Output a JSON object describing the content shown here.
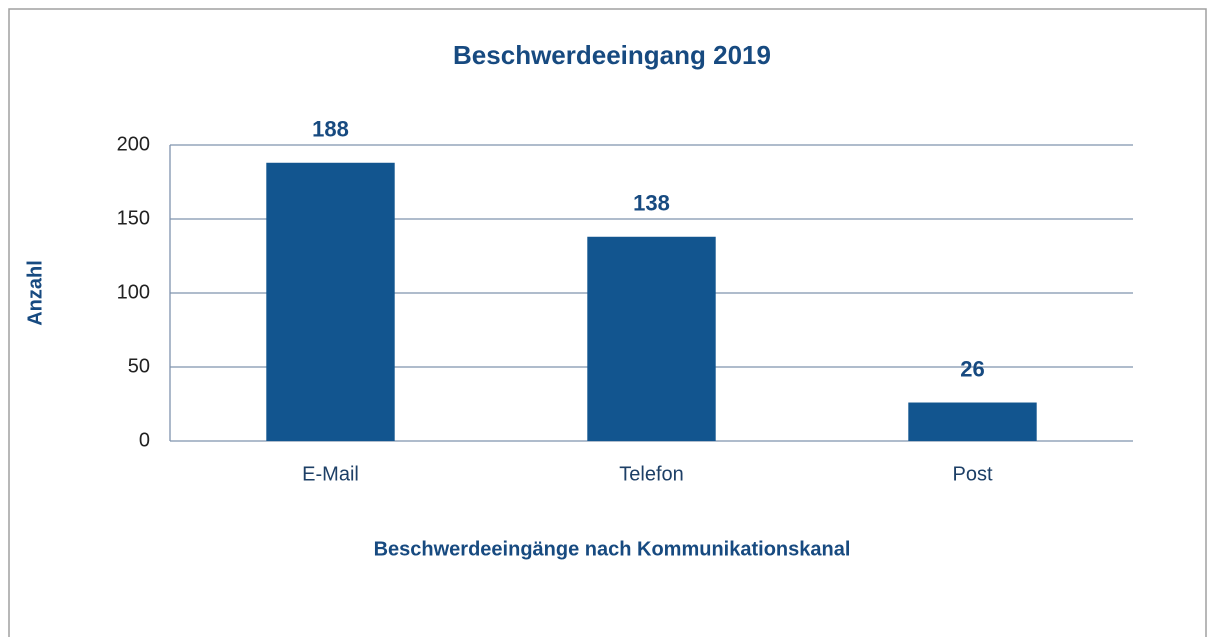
{
  "chart_data": {
    "type": "bar",
    "title": "Beschwerdeeingang 2019",
    "x_label": "Beschwerdeeingänge nach Kommunikationskanal",
    "y_label": "Anzahl",
    "categories": [
      "E-Mail",
      "Telefon",
      "Post"
    ],
    "values": [
      188,
      138,
      26
    ],
    "color": "#12558f",
    "ylim": [
      0,
      200
    ],
    "yticks": [
      0,
      50,
      100,
      150,
      200
    ],
    "grid": true
  }
}
